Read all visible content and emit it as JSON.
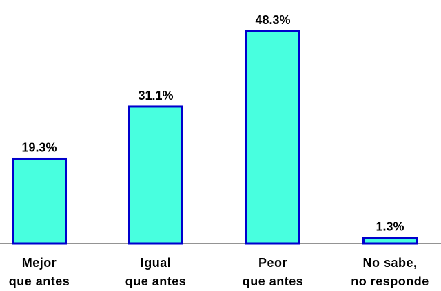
{
  "chart_data": {
    "type": "bar",
    "categories": [
      [
        "Mejor",
        "que antes"
      ],
      [
        "Igual",
        "que antes"
      ],
      [
        "Peor",
        "que antes"
      ],
      [
        "No sabe,",
        "no responde"
      ]
    ],
    "values": [
      19.3,
      31.1,
      48.3,
      1.3
    ],
    "data_labels": [
      "19.3%",
      "31.1%",
      "48.3%",
      "1.3%"
    ],
    "title": "",
    "xlabel": "",
    "ylabel": "",
    "ylim": [
      0,
      50
    ],
    "grid": false,
    "colors": {
      "bar_fill": "#48FFDF",
      "bar_stroke": "#0000CC",
      "axis": "#555555"
    }
  }
}
